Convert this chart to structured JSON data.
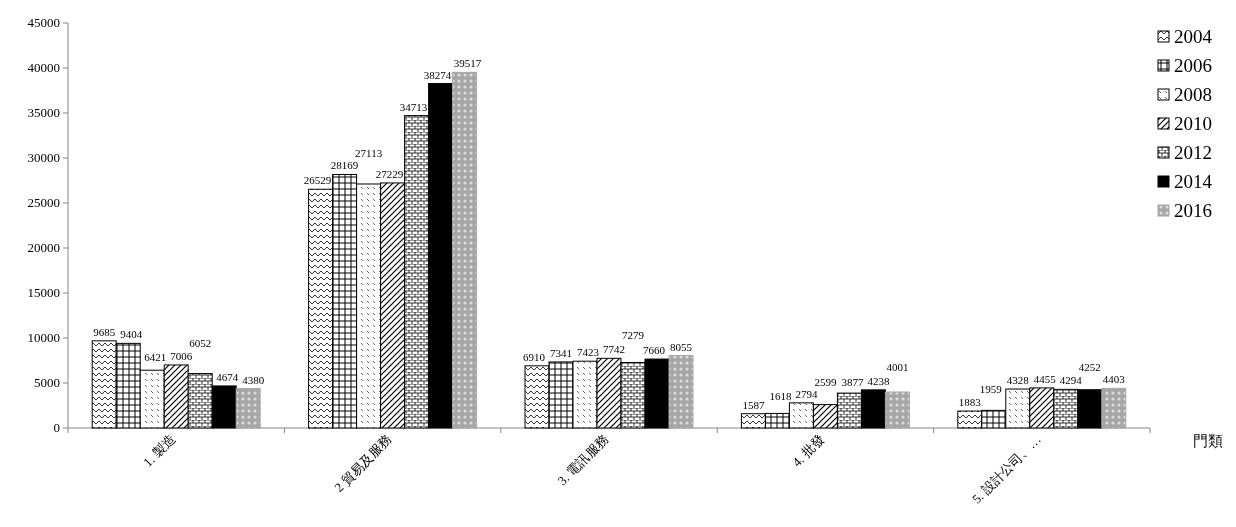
{
  "chart_data": {
    "type": "bar",
    "xlabel": "門類",
    "categories": [
      "1. 製造",
      "2 貿易及服務",
      "3. 電訊服務",
      "4. 批發",
      "5. 設計公司、…"
    ],
    "series": [
      {
        "name": "2004",
        "color": "#000000",
        "values": [
          9685,
          26529,
          6910,
          1587,
          1883
        ]
      },
      {
        "name": "2006",
        "color": "#000000",
        "values": [
          9404,
          28169,
          7341,
          1618,
          1959
        ]
      },
      {
        "name": "2008",
        "color": "#000000",
        "values": [
          6421,
          27113,
          7423,
          2794,
          4328
        ]
      },
      {
        "name": "2010",
        "color": "#000000",
        "values": [
          7006,
          27229,
          7742,
          2599,
          4455
        ]
      },
      {
        "name": "2012",
        "color": "#000000",
        "values": [
          6052,
          34713,
          7279,
          3877,
          4294
        ]
      },
      {
        "name": "2014",
        "color": "#000000",
        "values": [
          4674,
          38274,
          7660,
          4238,
          4252
        ]
      },
      {
        "name": "2016",
        "color": "#a6a6a6",
        "values": [
          4380,
          39517,
          8055,
          4001,
          4403
        ]
      }
    ],
    "ylim": [
      0,
      45000
    ],
    "yticks": [
      0,
      5000,
      10000,
      15000,
      20000,
      25000,
      30000,
      35000,
      40000,
      45000
    ],
    "data_labels": true,
    "legend": "right",
    "grid": false
  }
}
